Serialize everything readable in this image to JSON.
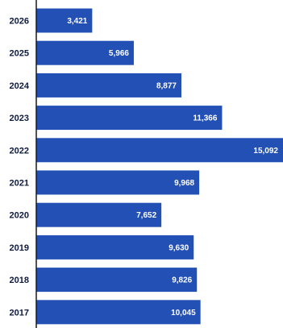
{
  "chart_data": {
    "type": "bar",
    "orientation": "horizontal",
    "title": "",
    "xlabel": "",
    "ylabel": "",
    "bar_color": "#2350b5",
    "axis_color": "#1a1a1a",
    "label_color": "#0f1b3d",
    "value_label_color": "#ffffff",
    "categories": [
      "2026",
      "2025",
      "2024",
      "2023",
      "2022",
      "2021",
      "2020",
      "2019",
      "2018",
      "2017"
    ],
    "values": [
      3421,
      5966,
      8877,
      11366,
      15092,
      9968,
      7652,
      9630,
      9826,
      10045
    ],
    "value_labels": [
      "3,421",
      "5,966",
      "8,877",
      "11,366",
      "15,092",
      "9,968",
      "7,652",
      "9,630",
      "9,826",
      "10,045"
    ],
    "xlim": [
      0,
      15092
    ],
    "grid": false,
    "legend": "none"
  }
}
